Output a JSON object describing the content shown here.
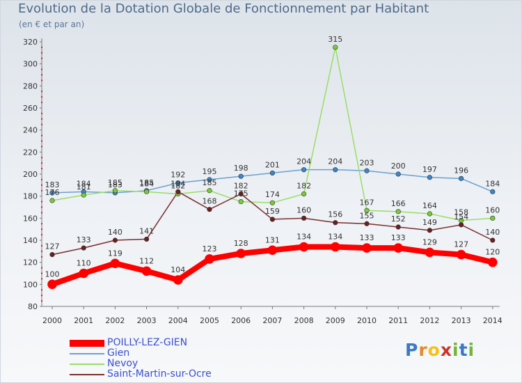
{
  "title": "Evolution de la Dotation Globale de Fonctionnement par Habitant",
  "subtitle": "(en € et par an)",
  "logo": {
    "text": "Proxiti",
    "letters": [
      "P",
      "r",
      "o",
      "x",
      "i",
      "t",
      "i"
    ],
    "colors": [
      "#3a78c8",
      "#e8872b",
      "#f2c21b",
      "#d0312d",
      "#73b43a",
      "#3a78c8",
      "#73b43a"
    ]
  },
  "chart_data": {
    "type": "line",
    "title": "Evolution de la Dotation Globale de Fonctionnement par Habitant",
    "ylabel": "(en € et par an)",
    "xlabel": "",
    "categories": [
      "2000",
      "2001",
      "2002",
      "2003",
      "2004",
      "2005",
      "2006",
      "2007",
      "2008",
      "2009",
      "2010",
      "2011",
      "2012",
      "2013",
      "2014"
    ],
    "ylim": [
      80,
      320
    ],
    "yticks": [
      80,
      100,
      120,
      140,
      160,
      180,
      200,
      220,
      240,
      260,
      280,
      300,
      320
    ],
    "grid": false,
    "legend_position": "bottom-left",
    "series": [
      {
        "name": "POILLY-LEZ-GIEN",
        "color": "#ff0000",
        "marker": "#ff0000",
        "width": 8,
        "values": [
          100,
          110,
          119,
          112,
          104,
          123,
          128,
          131,
          134,
          134,
          133,
          133,
          129,
          127,
          120
        ]
      },
      {
        "name": "Gien",
        "color": "#6a9fd0",
        "marker": "#3a86c8",
        "width": 1.5,
        "values": [
          183,
          184,
          183,
          185,
          192,
          195,
          198,
          201,
          204,
          204,
          203,
          200,
          197,
          196,
          184
        ]
      },
      {
        "name": "Nevoy",
        "color": "#99dd66",
        "marker": "#77cc33",
        "width": 1.5,
        "values": [
          176,
          181,
          185,
          184,
          182,
          185,
          175,
          174,
          182,
          315,
          167,
          166,
          164,
          158,
          160
        ]
      },
      {
        "name": "Saint-Martin-sur-Ocre",
        "color": "#7a2e2e",
        "marker": "#6b1f1f",
        "width": 1.5,
        "values": [
          127,
          133,
          140,
          141,
          184,
          168,
          182,
          159,
          160,
          156,
          155,
          152,
          149,
          154,
          140
        ]
      }
    ]
  }
}
